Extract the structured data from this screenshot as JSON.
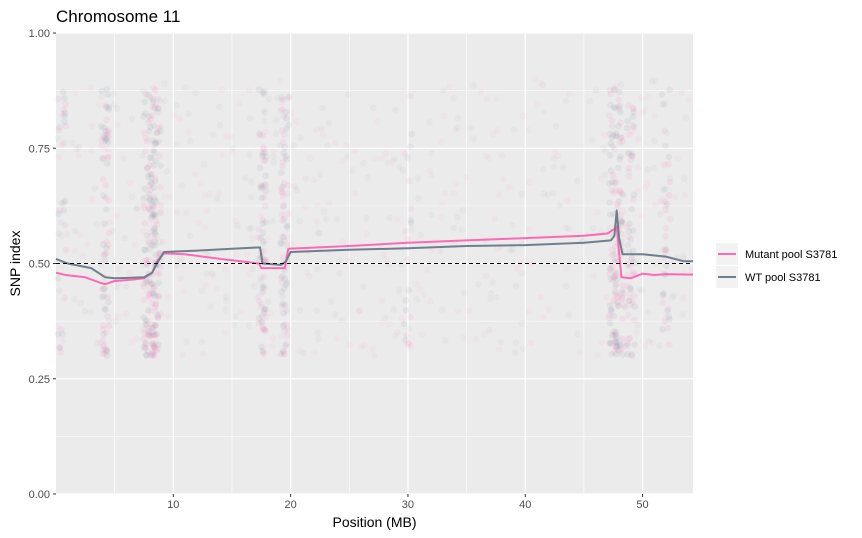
{
  "chart_data": {
    "type": "line",
    "title": "Chromosome 11",
    "xlabel": "Position (MB)",
    "ylabel": "SNP index",
    "xlim": [
      0,
      54.3
    ],
    "ylim": [
      0,
      1
    ],
    "x_ticks": [
      {
        "value": 10,
        "label": "10"
      },
      {
        "value": 20,
        "label": "20"
      },
      {
        "value": 30,
        "label": "30"
      },
      {
        "value": 40,
        "label": "40"
      },
      {
        "value": 50,
        "label": "50"
      }
    ],
    "y_ticks": [
      {
        "value": 0,
        "label": "0.00"
      },
      {
        "value": 0.25,
        "label": "0.25"
      },
      {
        "value": 0.5,
        "label": "0.50"
      },
      {
        "value": 0.75,
        "label": "0.75"
      },
      {
        "value": 1,
        "label": "1.00"
      }
    ],
    "grid": true,
    "reference_line": {
      "y": 0.5,
      "style": "dashed",
      "color": "#000000"
    },
    "legend_position": "right",
    "series": [
      {
        "name": "Mutant pool S3781",
        "color": "#ff69b4",
        "x": [
          0,
          0.8,
          2.5,
          3.8,
          4.2,
          5,
          6.5,
          7.5,
          8.2,
          8.6,
          9.2,
          11,
          14,
          17.3,
          17.5,
          19.5,
          19.8,
          25,
          30,
          35,
          40,
          45,
          47,
          47.6,
          47.8,
          48.2,
          49,
          50,
          51,
          52,
          54.3
        ],
        "y": [
          0.48,
          0.475,
          0.47,
          0.458,
          0.455,
          0.462,
          0.465,
          0.468,
          0.48,
          0.505,
          0.522,
          0.52,
          0.51,
          0.5,
          0.49,
          0.49,
          0.532,
          0.538,
          0.545,
          0.55,
          0.555,
          0.56,
          0.565,
          0.575,
          0.58,
          0.47,
          0.468,
          0.478,
          0.475,
          0.477,
          0.476
        ]
      },
      {
        "name": "WT pool S3781",
        "color": "#6e7f8d",
        "x": [
          0,
          1,
          3,
          4.2,
          5,
          7.5,
          8.2,
          8.6,
          9.2,
          12,
          15,
          17.4,
          17.6,
          19.2,
          19.6,
          20,
          25,
          30,
          35,
          40,
          45,
          47.3,
          47.6,
          47.8,
          48,
          48.3,
          50,
          52,
          53.5,
          54.3
        ],
        "y": [
          0.51,
          0.5,
          0.49,
          0.47,
          0.468,
          0.47,
          0.48,
          0.5,
          0.525,
          0.528,
          0.532,
          0.535,
          0.5,
          0.497,
          0.505,
          0.525,
          0.53,
          0.533,
          0.538,
          0.54,
          0.545,
          0.55,
          0.56,
          0.615,
          0.555,
          0.52,
          0.52,
          0.515,
          0.505,
          0.505
        ]
      }
    ],
    "scatter_density": [
      {
        "x": 0.5,
        "weight": 0.4
      },
      {
        "x": 4.2,
        "weight": 1.0
      },
      {
        "x": 7.8,
        "weight": 1.0
      },
      {
        "x": 8.2,
        "weight": 1.0
      },
      {
        "x": 8.6,
        "weight": 1.0
      },
      {
        "x": 17.6,
        "weight": 1.0
      },
      {
        "x": 19.5,
        "weight": 1.0
      },
      {
        "x": 30.0,
        "weight": 0.3
      },
      {
        "x": 47.5,
        "weight": 1.0
      },
      {
        "x": 48.0,
        "weight": 1.0
      },
      {
        "x": 49.0,
        "weight": 0.8
      },
      {
        "x": 52.0,
        "weight": 0.5
      }
    ]
  }
}
